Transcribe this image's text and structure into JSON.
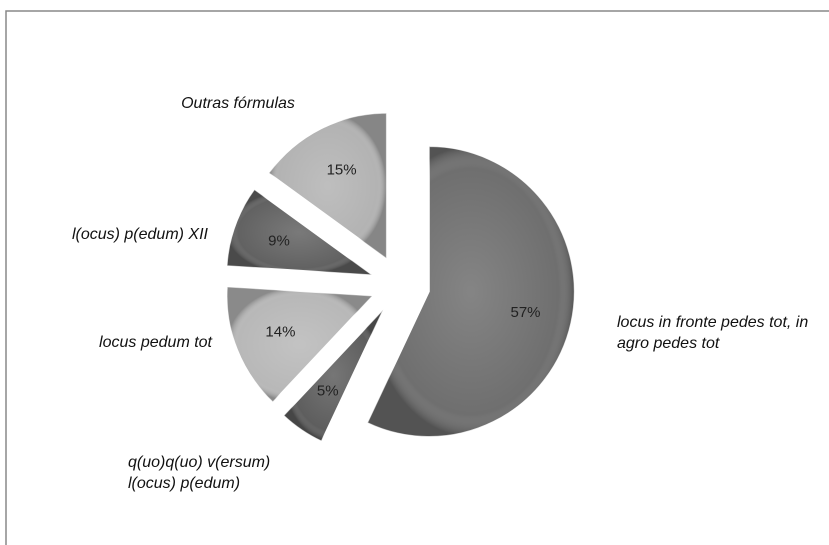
{
  "chart_data": {
    "type": "pie",
    "categories": [
      "locus in fronte pedes tot, in agro pedes tot",
      "q(uo)q(uo) v(ersum) l(ocus) p(edum)",
      "locus pedum tot",
      "l(ocus) p(edum) XII",
      "Outras fórmulas"
    ],
    "values": [
      57,
      5,
      14,
      9,
      15
    ],
    "value_labels": [
      "57%",
      "5%",
      "14%",
      "9%",
      "15%"
    ],
    "colors": [
      "#6f6f6f",
      "#5e5e5e",
      "#b8b8b8",
      "#626262",
      "#b3b3b3"
    ]
  }
}
